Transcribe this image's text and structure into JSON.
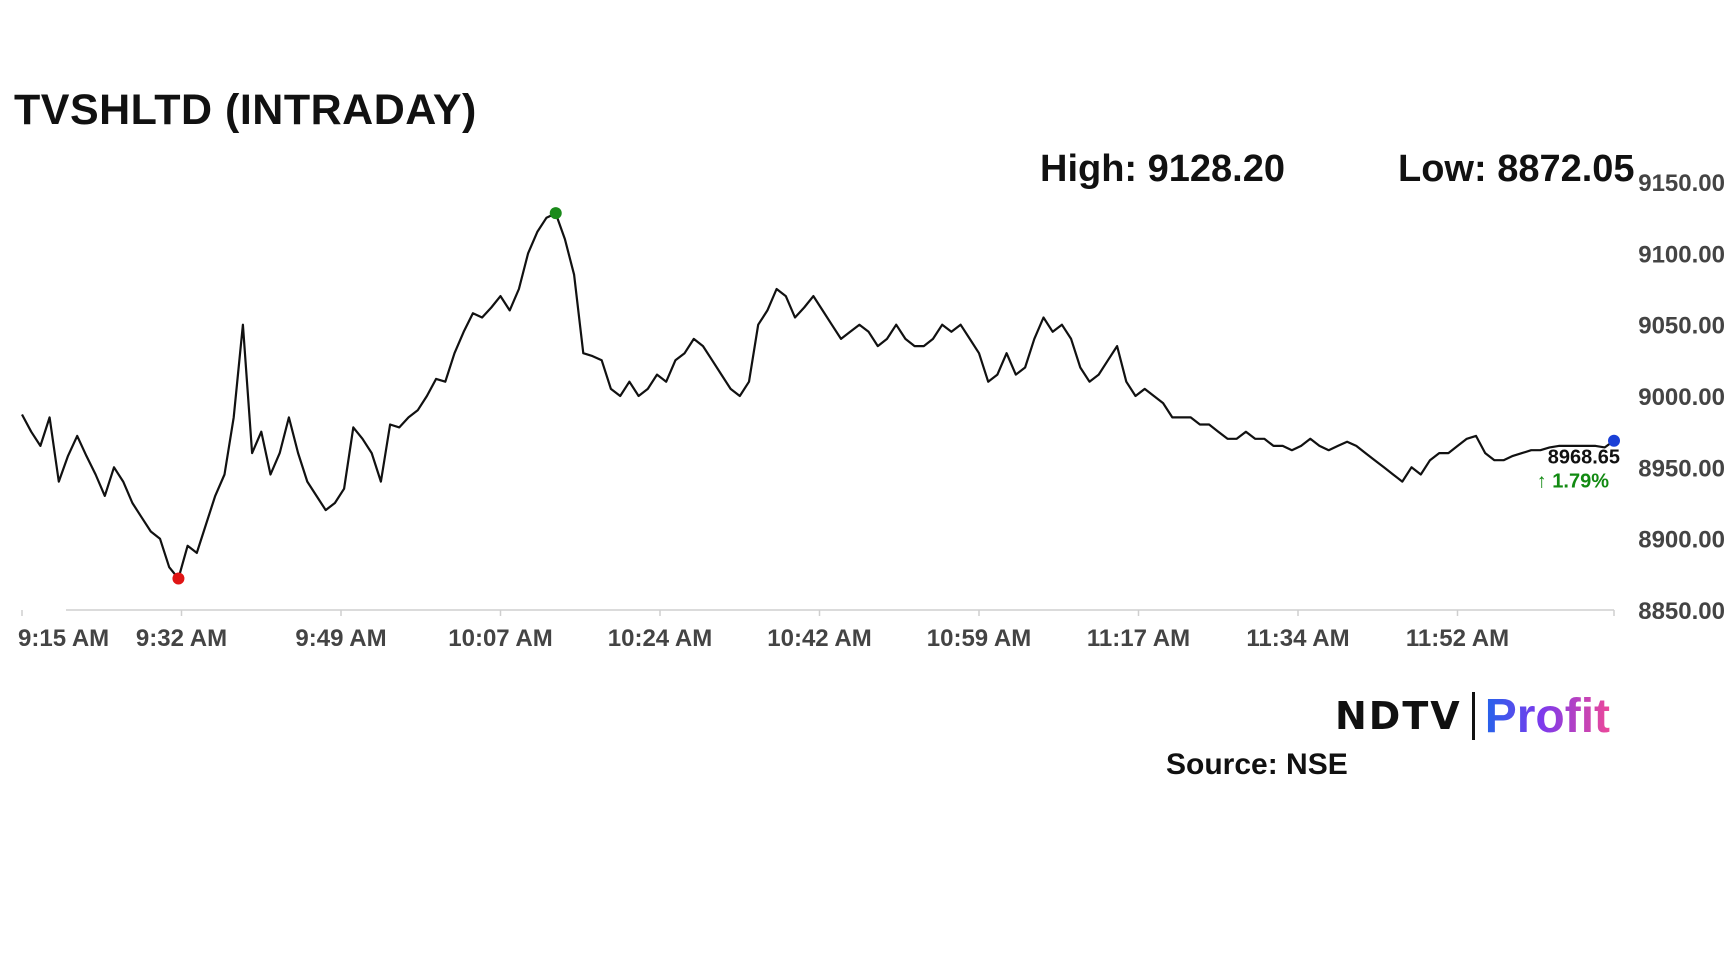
{
  "header": {
    "title": "TVSHLTD (INTRADAY)",
    "high_text": "High: 9128.20",
    "low_text": "Low: 8872.05"
  },
  "footer": {
    "logo_ndtv": "NDTV",
    "logo_profit": "Profit",
    "source": "Source: NSE"
  },
  "chart_data": {
    "type": "line",
    "title": "TVSHLTD (INTRADAY)",
    "xlabel": "",
    "ylabel": "",
    "ylim": [
      8850,
      9150
    ],
    "y_ticks": [
      "9150.00",
      "9100.00",
      "9050.00",
      "9000.00",
      "8950.00",
      "8900.00",
      "8850.00"
    ],
    "x_ticks": [
      "9:15 AM",
      "9:32 AM",
      "9:49 AM",
      "10:07 AM",
      "10:24 AM",
      "10:42 AM",
      "10:59 AM",
      "11:17 AM",
      "11:34 AM",
      "11:52 AM"
    ],
    "grid": false,
    "high": 9128.2,
    "low": 8872.05,
    "last_value": "8968.65",
    "change": "↑ 1.79%",
    "colors": {
      "line": "#111111",
      "high_marker": "#1a8a1a",
      "low_marker": "#e01515",
      "last_marker": "#1a3fd6",
      "change": "#128a12"
    },
    "series": [
      {
        "x": [
          0,
          1,
          2,
          3,
          4,
          5,
          6,
          7,
          8,
          9,
          10,
          11,
          12,
          13,
          14,
          15,
          16,
          17,
          18,
          19,
          20,
          21,
          22,
          23,
          24,
          25,
          26,
          27,
          28,
          29,
          30,
          31,
          32,
          33,
          34,
          35,
          36,
          37,
          38,
          39,
          40,
          41,
          42,
          43,
          44,
          45,
          46,
          47,
          48,
          49,
          50,
          51,
          52,
          53,
          54,
          55,
          56,
          57,
          58,
          59,
          60,
          61,
          62,
          63,
          64,
          65,
          66,
          67,
          68,
          69,
          70,
          71,
          72,
          73,
          74,
          75,
          76,
          77,
          78,
          79,
          80,
          81,
          82,
          83,
          84,
          85,
          86,
          87,
          88,
          89,
          90,
          91,
          92,
          93,
          94,
          95,
          96,
          97,
          98,
          99,
          100,
          101,
          102,
          103,
          104,
          105,
          106,
          107,
          108,
          109,
          110,
          111,
          112,
          113,
          114,
          115,
          116,
          117,
          118,
          119,
          120,
          121,
          122,
          123,
          124,
          125,
          126,
          127,
          128,
          129,
          130,
          131,
          132,
          133,
          134,
          135,
          136,
          137,
          138,
          139,
          140,
          141,
          142,
          143,
          144,
          145,
          146,
          147,
          148,
          149,
          150,
          151,
          152,
          153,
          154,
          155,
          156,
          157,
          158,
          159,
          160,
          161,
          162,
          163,
          164,
          165,
          166,
          167,
          168,
          169,
          170,
          171,
          172,
          173
        ],
        "y": [
          8987,
          8975,
          8965,
          8985,
          8940,
          8958,
          8972,
          8958,
          8945,
          8930,
          8950,
          8940,
          8925,
          8915,
          8905,
          8900,
          8880,
          8872,
          8895,
          8890,
          8910,
          8930,
          8945,
          8985,
          9050,
          8960,
          8975,
          8945,
          8960,
          8985,
          8960,
          8940,
          8930,
          8920,
          8925,
          8935,
          8978,
          8970,
          8960,
          8940,
          8980,
          8978,
          8985,
          8990,
          9000,
          9012,
          9010,
          9030,
          9045,
          9058,
          9055,
          9062,
          9070,
          9060,
          9075,
          9100,
          9115,
          9125,
          9128,
          9110,
          9085,
          9030,
          9028,
          9025,
          9005,
          9000,
          9010,
          9000,
          9005,
          9015,
          9010,
          9025,
          9030,
          9040,
          9035,
          9025,
          9015,
          9005,
          9000,
          9010,
          9050,
          9060,
          9075,
          9070,
          9055,
          9062,
          9070,
          9060,
          9050,
          9040,
          9045,
          9050,
          9045,
          9035,
          9040,
          9050,
          9040,
          9035,
          9035,
          9040,
          9050,
          9045,
          9050,
          9040,
          9030,
          9010,
          9015,
          9030,
          9015,
          9020,
          9040,
          9055,
          9045,
          9050,
          9040,
          9020,
          9010,
          9015,
          9025,
          9035,
          9010,
          9000,
          9005,
          9000,
          8995,
          8985,
          8985,
          8985,
          8980,
          8980,
          8975,
          8970,
          8970,
          8975,
          8970,
          8970,
          8965,
          8965,
          8962,
          8965,
          8970,
          8965,
          8962,
          8965,
          8968,
          8965,
          8960,
          8955,
          8950,
          8945,
          8940,
          8950,
          8945,
          8955,
          8960,
          8960,
          8965,
          8970,
          8972,
          8960,
          8955,
          8955,
          8958,
          8960,
          8962,
          8962,
          8964,
          8965,
          8965,
          8965,
          8965,
          8965,
          8964,
          8968.65
        ]
      }
    ]
  }
}
